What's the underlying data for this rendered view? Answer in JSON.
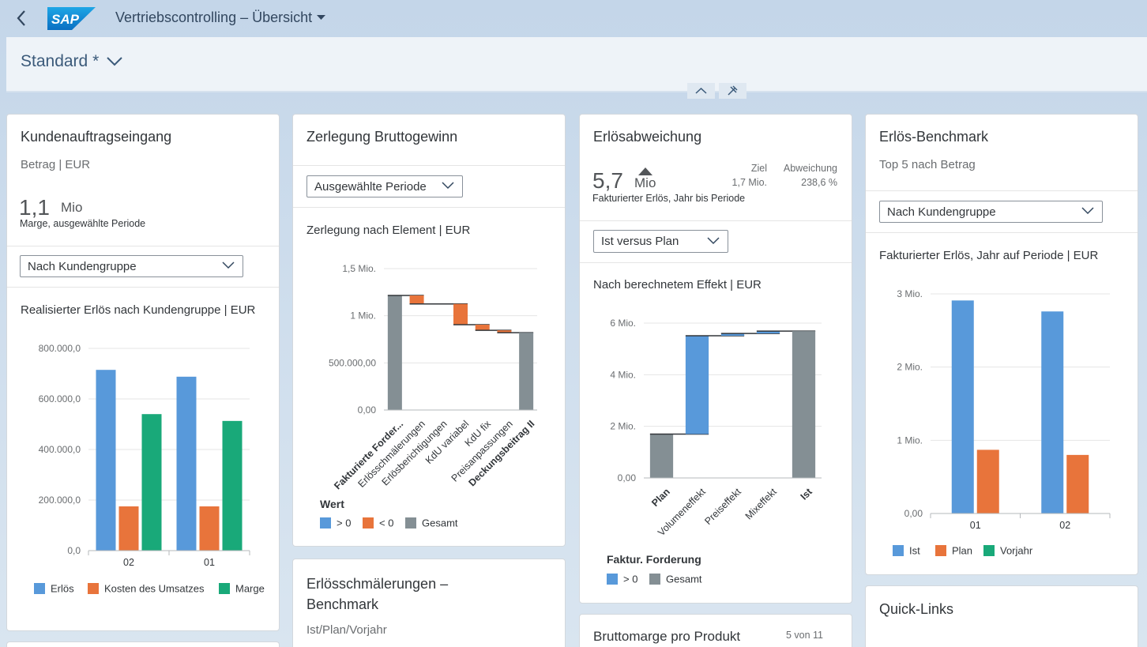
{
  "header": {
    "logo": "SAP",
    "title": "Vertriebscontrolling – Übersicht",
    "variant": "Standard *"
  },
  "cards": [
    {
      "title": "Kundenauftragseingang",
      "subtitle": "Betrag | EUR",
      "kpi": {
        "value": "1,1",
        "unit": "Mio",
        "label": "Marge, ausgewählte Periode"
      },
      "select": "Nach Kundengruppe",
      "chart_data": {
        "type": "bar",
        "title": "Realisierter Erlös nach Kundengruppe | EUR",
        "categories": [
          "02",
          "01"
        ],
        "series": [
          {
            "name": "Erlös",
            "color": "#5899da",
            "values": [
              715000,
              688000
            ]
          },
          {
            "name": "Kosten des Umsatzes",
            "color": "#e8743b",
            "values": [
              175000,
              175000
            ]
          },
          {
            "name": "Marge",
            "color": "#19a979",
            "values": [
              540000,
              513000
            ]
          }
        ],
        "ylim": [
          0,
          800000
        ],
        "yticks": [
          {
            "value": 0,
            "label": "0,0"
          },
          {
            "value": 200000,
            "label": "200.000,0"
          },
          {
            "value": 400000,
            "label": "400.000,0"
          },
          {
            "value": 600000,
            "label": "600.000,0"
          },
          {
            "value": 800000,
            "label": "800.000,0"
          }
        ],
        "grid": true
      }
    },
    {
      "title": "Zerlegung Bruttogewinn",
      "select": "Ausgewählte Periode",
      "chart_data": {
        "type": "waterfall",
        "title": "Zerlegung nach Element | EUR",
        "categories": [
          "Fakturierte Forder...",
          "Erlösschmälerungen",
          "Erlösberichtigungen",
          "KdU variabel",
          "KdU fix",
          "Preisanpassungen",
          "Deckungsbeitrag II"
        ],
        "values": [
          1215000,
          -90000,
          0,
          -220000,
          -60000,
          -25000,
          820000
        ],
        "ylim": [
          0,
          1500000
        ],
        "yticks": [
          {
            "value": 0,
            "label": "0,00"
          },
          {
            "value": 500000,
            "label": "500.000,00"
          },
          {
            "value": 1000000,
            "label": "1 Mio."
          },
          {
            "value": 1500000,
            "label": "1,5 Mio."
          }
        ],
        "grid": true,
        "legend_title": "Wert",
        "legend": [
          {
            "name": "> 0",
            "color": "#5899da"
          },
          {
            "name": "< 0",
            "color": "#e8743b"
          },
          {
            "name": "Gesamt",
            "color": "#848f94"
          }
        ]
      }
    },
    {
      "title": "Erlösabweichung",
      "kpi": {
        "value": "5,7",
        "unit": "Mio",
        "label": "Fakturierter Erlös, Jahr bis Periode",
        "target_label": "Ziel",
        "target": "1,7 Mio.",
        "deviation_label": "Abweichung",
        "deviation": "238,6 %"
      },
      "select": "Ist versus Plan",
      "chart_data": {
        "type": "waterfall",
        "title": "Nach berechnetem Effekt | EUR",
        "categories": [
          "Plan",
          "Volumeneffekt",
          "Preiseffekt",
          "Mixeffekt",
          "Ist"
        ],
        "values": [
          1700000,
          3810000,
          90000,
          90000,
          5690000
        ],
        "ylim": [
          0,
          6000000
        ],
        "yticks": [
          {
            "value": 0,
            "label": "0,00"
          },
          {
            "value": 2000000,
            "label": "2 Mio."
          },
          {
            "value": 4000000,
            "label": "4 Mio."
          },
          {
            "value": 6000000,
            "label": "6 Mio."
          }
        ],
        "grid": true,
        "legend_title": "Faktur. Forderung",
        "legend": [
          {
            "name": "> 0",
            "color": "#5899da"
          },
          {
            "name": "Gesamt",
            "color": "#848f94"
          }
        ]
      }
    },
    {
      "title": "Erlös-Benchmark",
      "subtitle": "Top 5 nach Betrag",
      "select": "Nach Kundengruppe",
      "chart_data": {
        "type": "bar",
        "title": "Fakturierter Erlös, Jahr auf Periode | EUR",
        "categories": [
          "01",
          "02"
        ],
        "series": [
          {
            "name": "Ist",
            "color": "#5899da",
            "values": [
              2910000,
              2760000
            ]
          },
          {
            "name": "Plan",
            "color": "#e8743b",
            "values": [
              870000,
              800000
            ]
          },
          {
            "name": "Vorjahr",
            "color": "#19a979",
            "values": [
              null,
              null
            ]
          }
        ],
        "ylim": [
          0,
          3000000
        ],
        "yticks": [
          {
            "value": 0,
            "label": "0,00"
          },
          {
            "value": 1000000,
            "label": "1 Mio."
          },
          {
            "value": 2000000,
            "label": "2 Mio."
          },
          {
            "value": 3000000,
            "label": "3 Mio."
          }
        ],
        "grid": true
      }
    }
  ],
  "lower_cards": [
    {
      "title": "Erlösschmälerungen – Benchmark",
      "subtitle": "Ist/Plan/Vorjahr"
    },
    {
      "title": "Bruttomarge pro Produkt",
      "count": "5 von 11"
    },
    {
      "title": "Quick-Links"
    }
  ]
}
